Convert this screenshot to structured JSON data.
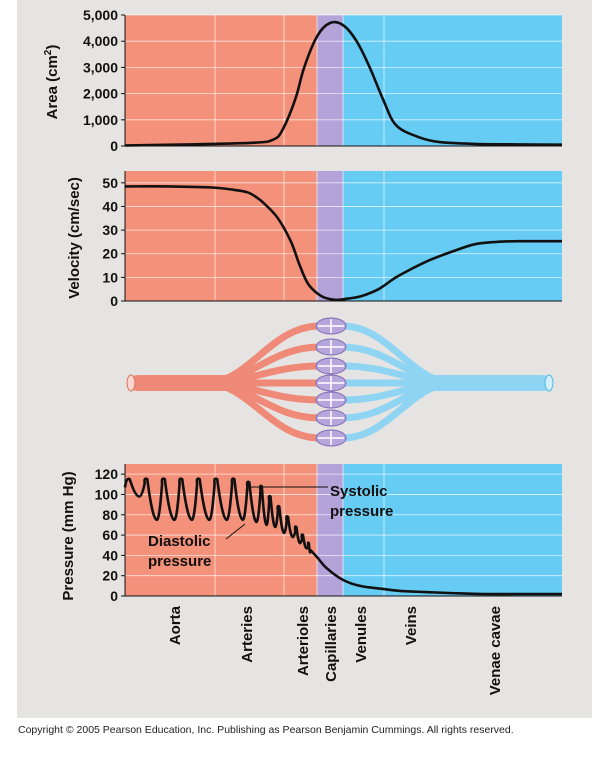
{
  "colors": {
    "background": "#e6e4e2",
    "artery_region": "#f4917a",
    "capillary_region": "#b3a3d9",
    "vein_region": "#66ccf4",
    "curve": "#111111",
    "artery_vessel": "#f08a78",
    "vein_vessel": "#8fd5f3",
    "capillary_bed": "#b7a6dc"
  },
  "regions": [
    "Aorta",
    "Arteries",
    "Arterioles",
    "Capillaries",
    "Venules",
    "Veins",
    "Venae cavae"
  ],
  "chart_data": [
    {
      "type": "area",
      "ylabel": "Area (cm²)",
      "ylabel_main": "Area (cm",
      "ylabel_sup": "2",
      "ylabel_end": ")",
      "ylim": [
        0,
        5000
      ],
      "yticks": [
        "0",
        "1,000",
        "2,000",
        "3,000",
        "4,000",
        "5,000"
      ],
      "ytick_values": [
        0,
        1000,
        2000,
        3000,
        4000,
        5000
      ],
      "x": [
        0,
        0.15,
        0.3,
        0.34,
        0.36,
        0.39,
        0.41,
        0.44,
        0.47,
        0.5,
        0.53,
        0.56,
        0.59,
        0.62,
        0.67,
        0.72,
        0.8,
        0.9,
        1.0
      ],
      "y": [
        20,
        60,
        130,
        250,
        600,
        1800,
        3000,
        4200,
        4700,
        4600,
        4000,
        3000,
        1800,
        800,
        350,
        150,
        80,
        60,
        50
      ]
    },
    {
      "type": "line",
      "ylabel": "Velocity (cm/sec)",
      "ylim": [
        0,
        55
      ],
      "yticks": [
        "0",
        "10",
        "20",
        "30",
        "40",
        "50"
      ],
      "ytick_values": [
        0,
        10,
        20,
        30,
        40,
        50
      ],
      "x": [
        0,
        0.1,
        0.2,
        0.25,
        0.28,
        0.3,
        0.32,
        0.35,
        0.38,
        0.4,
        0.42,
        0.45,
        0.48,
        0.51,
        0.54,
        0.58,
        0.62,
        0.66,
        0.7,
        0.75,
        0.8,
        0.85,
        0.9,
        1.0
      ],
      "y": [
        48.5,
        48.5,
        48,
        47,
        46,
        44,
        41,
        35,
        25,
        15,
        7,
        2,
        0.5,
        1,
        2,
        5,
        10,
        14,
        17.5,
        21,
        24,
        25,
        25.3,
        25.3
      ]
    },
    {
      "type": "line",
      "ylabel": "Pressure (mm Hg)",
      "ylim": [
        0,
        130
      ],
      "yticks": [
        "0",
        "20",
        "40",
        "60",
        "80",
        "100",
        "120"
      ],
      "ytick_values": [
        0,
        20,
        40,
        60,
        80,
        100,
        120
      ],
      "systolic_peaks_x": [
        0.005,
        0.045,
        0.085,
        0.125,
        0.165,
        0.205,
        0.245,
        0.28,
        0.31,
        0.33,
        0.35,
        0.37,
        0.39,
        0.405,
        0.42
      ],
      "systolic_peaks_y": [
        115,
        115,
        115,
        115,
        115,
        115,
        115,
        112,
        108,
        98,
        88,
        78,
        68,
        60,
        52
      ],
      "diastolic_troughs_y": [
        98,
        75,
        75,
        75,
        75,
        75,
        75,
        73,
        70,
        68,
        62,
        58,
        52,
        47,
        43
      ],
      "tail_x": [
        0.425,
        0.44,
        0.46,
        0.49,
        0.52,
        0.55,
        0.59,
        0.63,
        0.68,
        0.74,
        0.82,
        0.9,
        1.0
      ],
      "tail_y": [
        45,
        38,
        28,
        18,
        12,
        9,
        7,
        5,
        4,
        3,
        2,
        2,
        2
      ],
      "annotations": [
        {
          "lines": [
            "Systolic",
            "pressure"
          ]
        },
        {
          "lines": [
            "Diastolic",
            "pressure"
          ]
        }
      ]
    }
  ],
  "copyright": "Copyright © 2005 Pearson Education, Inc. Publishing as Pearson Benjamin Cummings. All rights reserved."
}
